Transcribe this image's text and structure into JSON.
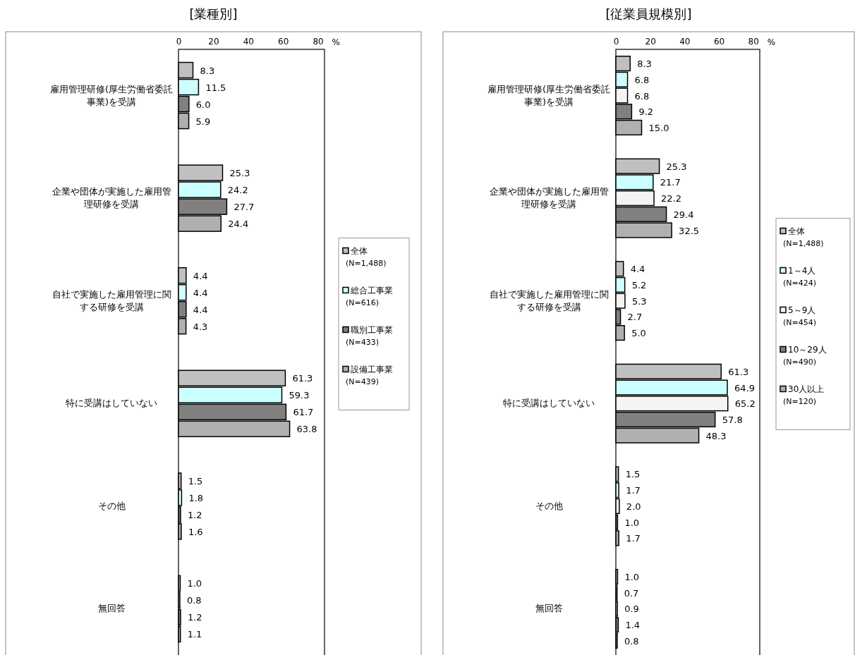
{
  "chart_data": [
    {
      "type": "bar",
      "orientation": "horizontal",
      "title": "[業種別]",
      "xlabel": "%",
      "categories": [
        "雇用管理研修(厚生労働省委託事業)を受講",
        "企業や団体が実施した雇用管理研修を受講",
        "自社で実施した雇用管理に関する研修を受講",
        "特に受講はしていない",
        "その他",
        "無回答"
      ],
      "series": [
        {
          "name": "全体\n(N=1,488)",
          "color": "#c0c0c0",
          "values": [
            8.3,
            25.3,
            4.4,
            61.3,
            1.5,
            1.0
          ],
          "value_labels": [
            "8.3",
            "25.3",
            "4.4",
            "61.3",
            "1.5",
            "1.0"
          ]
        },
        {
          "name": "総合工事業\n(N=616)",
          "color": "#ccffff",
          "values": [
            11.5,
            24.2,
            4.4,
            59.3,
            1.8,
            0.8
          ],
          "value_labels": [
            "11.5",
            "24.2",
            "4.4",
            "59.3",
            "1.8",
            "0.8"
          ]
        },
        {
          "name": "職別工事業\n(N=433)",
          "color": "#808080",
          "values": [
            6.0,
            27.7,
            4.4,
            61.7,
            1.2,
            1.2
          ],
          "value_labels": [
            "6.0",
            "27.7",
            "4.4",
            "61.7",
            "1.2",
            "1.2"
          ]
        },
        {
          "name": "設備工事業\n(N=439)",
          "color": "#b0b0b0",
          "values": [
            5.9,
            24.4,
            4.3,
            63.8,
            1.6,
            1.1
          ],
          "value_labels": [
            "5.9",
            "24.4",
            "4.3",
            "63.8",
            "1.6",
            "1.1"
          ]
        }
      ],
      "xlim": [
        0,
        83.8
      ],
      "xticks": [
        0,
        20,
        40,
        60,
        80
      ],
      "legend": "right"
    },
    {
      "type": "bar",
      "orientation": "horizontal",
      "title": "[従業員規模別]",
      "xlabel": "%",
      "categories": [
        "雇用管理研修(厚生労働省委託事業)を受講",
        "企業や団体が実施した雇用管理研修を受講",
        "自社で実施した雇用管理に関する研修を受講",
        "特に受講はしていない",
        "その他",
        "無回答"
      ],
      "series": [
        {
          "name": "全体\n(N=1,488)",
          "color": "#c0c0c0",
          "values": [
            8.3,
            25.3,
            4.4,
            61.3,
            1.5,
            1.0
          ],
          "value_labels": [
            "8.3",
            "25.3",
            "4.4",
            "61.3",
            "1.5",
            "1.0"
          ]
        },
        {
          "name": "1～4人\n(N=424)",
          "color": "#ccffff",
          "values": [
            6.8,
            21.7,
            5.2,
            64.9,
            1.7,
            0.7
          ],
          "value_labels": [
            "6.8",
            "21.7",
            "5.2",
            "64.9",
            "1.7",
            "0.7"
          ]
        },
        {
          "name": "5～9人\n(N=454)",
          "color": "#f4f4f4",
          "values": [
            6.8,
            22.2,
            5.3,
            65.2,
            2.0,
            0.9
          ],
          "value_labels": [
            "6.8",
            "22.2",
            "5.3",
            "65.2",
            "2.0",
            "0.9"
          ]
        },
        {
          "name": "10～29人\n(N=490)",
          "color": "#808080",
          "values": [
            9.2,
            29.4,
            2.7,
            57.8,
            1.0,
            1.4
          ],
          "value_labels": [
            "9.2",
            "29.4",
            "2.7",
            "57.8",
            "1.0",
            "1.4"
          ]
        },
        {
          "name": "30人以上\n(N=120)",
          "color": "#b0b0b0",
          "values": [
            15.0,
            32.5,
            5.0,
            48.3,
            1.7,
            0.8
          ],
          "value_labels": [
            "15.0",
            "32.5",
            "5.0",
            "48.3",
            "1.7",
            "0.8"
          ]
        }
      ],
      "xlim": [
        0,
        83.8
      ],
      "xticks": [
        0,
        20,
        40,
        60,
        80
      ],
      "legend": "right"
    }
  ]
}
